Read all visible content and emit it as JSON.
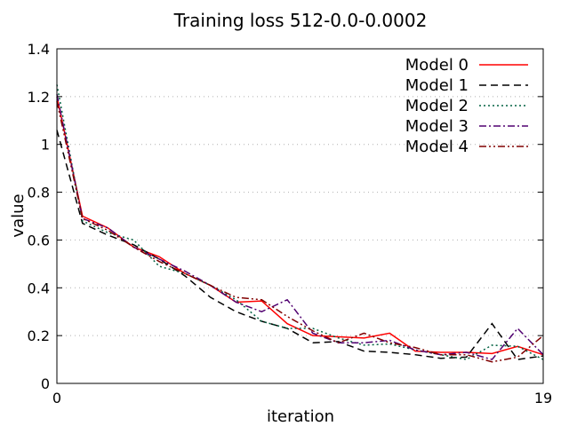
{
  "chart_data": {
    "type": "line",
    "title": "Training loss 512-0.0-0.0002",
    "xlabel": "iteration",
    "ylabel": "value",
    "xlim": [
      0,
      19
    ],
    "ylim": [
      0,
      1.4
    ],
    "x_ticks": [
      0,
      19
    ],
    "x_tick_labels": [
      "0",
      "19"
    ],
    "y_ticks": [
      0,
      0.2,
      0.4,
      0.6,
      0.8,
      1,
      1.2,
      1.4
    ],
    "y_tick_labels": [
      "0",
      "0.2",
      "0.4",
      "0.6",
      "0.8",
      "1",
      "1.2",
      "1.4"
    ],
    "grid": true,
    "legend_position": "top-right",
    "x": [
      0,
      1,
      2,
      3,
      4,
      5,
      6,
      7,
      8,
      9,
      10,
      11,
      12,
      13,
      14,
      15,
      16,
      17,
      18,
      19
    ],
    "series": [
      {
        "name": "Model 0",
        "color": "#ff0000",
        "dash": "solid",
        "values": [
          1.2,
          0.7,
          0.65,
          0.57,
          0.53,
          0.46,
          0.41,
          0.34,
          0.345,
          0.25,
          0.2,
          0.195,
          0.19,
          0.21,
          0.135,
          0.13,
          0.13,
          0.125,
          0.155,
          0.12
        ]
      },
      {
        "name": "Model 1",
        "color": "#000000",
        "dash": "dashed",
        "values": [
          1.06,
          0.67,
          0.62,
          0.58,
          0.52,
          0.45,
          0.36,
          0.3,
          0.26,
          0.23,
          0.17,
          0.175,
          0.135,
          0.13,
          0.12,
          0.105,
          0.11,
          0.25,
          0.1,
          0.115
        ]
      },
      {
        "name": "Model 2",
        "color": "#006040",
        "dash": "dotted",
        "values": [
          1.25,
          0.68,
          0.63,
          0.6,
          0.49,
          0.46,
          0.41,
          0.35,
          0.26,
          0.23,
          0.23,
          0.19,
          0.16,
          0.165,
          0.14,
          0.12,
          0.1,
          0.16,
          0.155,
          0.1
        ]
      },
      {
        "name": "Model 3",
        "color": "#500070",
        "dash": "dashdot",
        "values": [
          1.21,
          0.69,
          0.65,
          0.57,
          0.52,
          0.47,
          0.41,
          0.34,
          0.3,
          0.35,
          0.21,
          0.17,
          0.17,
          0.18,
          0.14,
          0.12,
          0.13,
          0.1,
          0.23,
          0.12
        ]
      },
      {
        "name": "Model 4",
        "color": "#800000",
        "dash": "dashdotdot",
        "values": [
          1.18,
          0.69,
          0.64,
          0.57,
          0.51,
          0.46,
          0.41,
          0.36,
          0.35,
          0.28,
          0.22,
          0.17,
          0.21,
          0.17,
          0.15,
          0.12,
          0.12,
          0.09,
          0.11,
          0.2
        ]
      }
    ]
  }
}
